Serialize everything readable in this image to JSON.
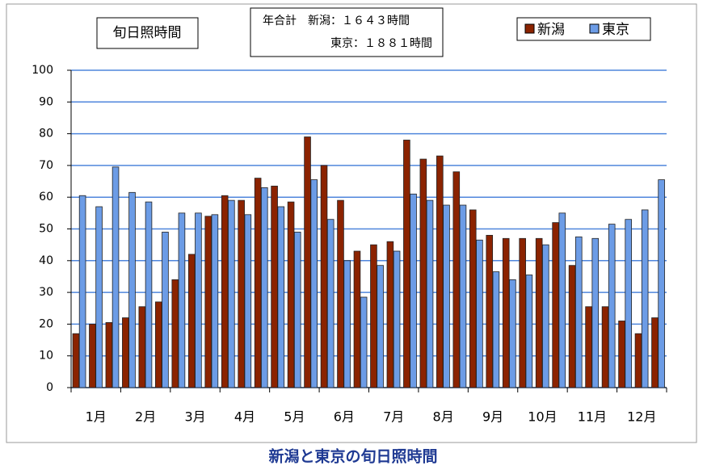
{
  "chart_data": {
    "type": "bar",
    "title": "新潟と東京の旬日照時間",
    "inner_title": "旬日照時間",
    "annotations": [
      "年合計　新潟：１６４３時間",
      "東京：１８８１時間"
    ],
    "categories": [
      null,
      "1月",
      null,
      null,
      "2月",
      null,
      null,
      "3月",
      null,
      null,
      "4月",
      null,
      null,
      "5月",
      null,
      null,
      "6月",
      null,
      null,
      "7月",
      null,
      null,
      "8月",
      null,
      null,
      "9月",
      null,
      null,
      "10月",
      null,
      null,
      "11月",
      null,
      null,
      "12月",
      null
    ],
    "series": [
      {
        "name": "新潟",
        "color": "#8b2300",
        "values": [
          17,
          20,
          20.5,
          22,
          25.5,
          27,
          34,
          42,
          54,
          60.5,
          59,
          66,
          63.5,
          58.5,
          79,
          70,
          59,
          43,
          45,
          46,
          78,
          72,
          73,
          68,
          56,
          48,
          47,
          47,
          47,
          52,
          38.5,
          25.5,
          25.5,
          21,
          17,
          22
        ]
      },
      {
        "name": "東京",
        "color": "#6c9ce6",
        "values": [
          60.5,
          57,
          69.5,
          61.5,
          58.5,
          49,
          55,
          55,
          54.5,
          59,
          54.5,
          63,
          57,
          49,
          65.5,
          53,
          40,
          28.5,
          38.5,
          43,
          61,
          59,
          57.5,
          57.5,
          46.5,
          36.5,
          34,
          35.5,
          45,
          55,
          47.5,
          47,
          51.5,
          53,
          56,
          65.5
        ]
      }
    ],
    "ylim": [
      0,
      100
    ],
    "yticks": [
      0,
      10,
      20,
      30,
      40,
      50,
      60,
      70,
      80,
      90,
      100
    ],
    "grid": true,
    "legend": "top-right"
  }
}
